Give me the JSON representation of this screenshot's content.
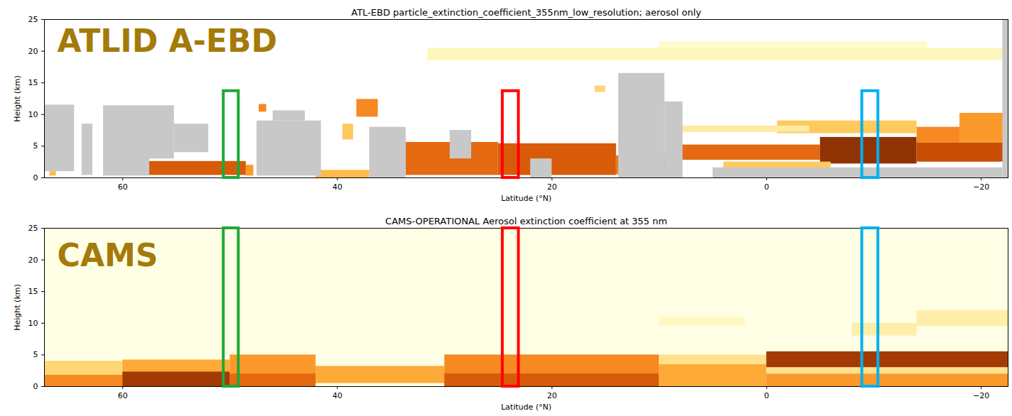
{
  "chart_data": [
    {
      "type": "heatmap",
      "title": "ATL-EBD particle_extinction_coefficient_355nm_low_resolution; aerosol only",
      "xlabel": "Latitude (°N)",
      "ylabel": "Height (km)",
      "xlim": [
        67.3,
        -22.5
      ],
      "ylim": [
        0,
        25
      ],
      "xticks": [
        60,
        40,
        20,
        0,
        {
          "value": -20,
          "label": "−20"
        }
      ],
      "yticks": [
        0,
        5,
        10,
        15,
        20,
        25
      ],
      "color": "YlOrBr",
      "zlim": [
        0,
        100
      ],
      "cells": [
        {
          "lat": [
            66.8,
            66.2
          ],
          "height": [
            0.3,
            1.0
          ],
          "value": 40
        },
        {
          "lat": [
            57.5,
            48.5
          ],
          "height": [
            0.4,
            2.6
          ],
          "value": 70
        },
        {
          "lat": [
            48.5,
            47.8
          ],
          "height": [
            0.3,
            2.0
          ],
          "value": 50
        },
        {
          "lat": [
            47.3,
            46.6
          ],
          "height": [
            10.4,
            11.6
          ],
          "value": 55
        },
        {
          "lat": [
            42,
            37
          ],
          "height": [
            0,
            1.2
          ],
          "value": 40
        },
        {
          "lat": [
            38.2,
            36.2
          ],
          "height": [
            9.6,
            12.4
          ],
          "value": 55
        },
        {
          "lat": [
            39.5,
            38.5
          ],
          "height": [
            6,
            8.5
          ],
          "value": 35
        },
        {
          "lat": [
            33.6,
            25
          ],
          "height": [
            0.4,
            5.6
          ],
          "value": 65
        },
        {
          "lat": [
            25,
            14
          ],
          "height": [
            0.4,
            5.4
          ],
          "value": 70
        },
        {
          "lat": [
            14,
            8
          ],
          "height": [
            0.5,
            3.5
          ],
          "value": 60
        },
        {
          "lat": [
            8,
            -5
          ],
          "height": [
            2.8,
            5.2
          ],
          "value": 65
        },
        {
          "lat": [
            -5,
            -14
          ],
          "height": [
            2.2,
            6.4
          ],
          "value": 90
        },
        {
          "lat": [
            -14,
            -22.5
          ],
          "height": [
            2.5,
            5.5
          ],
          "value": 75
        },
        {
          "lat": [
            -14,
            -18
          ],
          "height": [
            5.5,
            8
          ],
          "value": 55
        },
        {
          "lat": [
            -18,
            -22.5
          ],
          "height": [
            5.5,
            10.2
          ],
          "value": 50
        },
        {
          "lat": [
            -1,
            -14
          ],
          "height": [
            7,
            9
          ],
          "value": 35
        },
        {
          "lat": [
            9,
            -4
          ],
          "height": [
            7.2,
            8.2
          ],
          "value": 20
        },
        {
          "lat": [
            4,
            -6
          ],
          "height": [
            0.5,
            2.5
          ],
          "value": 35
        },
        {
          "lat": [
            31.6,
            -22
          ],
          "height": [
            18.5,
            20.5
          ],
          "value": 12
        },
        {
          "lat": [
            10,
            -15
          ],
          "height": [
            20.5,
            21.5
          ],
          "value": 8
        },
        {
          "lat": [
            16,
            15
          ],
          "height": [
            13.5,
            14.5
          ],
          "value": 30
        }
      ],
      "mask": {
        "color": "#c8c8c8",
        "cells": [
          {
            "lat": [
              67.3,
              64.5
            ],
            "height": [
              1,
              11.5
            ]
          },
          {
            "lat": [
              63.8,
              62.8
            ],
            "height": [
              0.4,
              8.5
            ]
          },
          {
            "lat": [
              61.8,
              57.5
            ],
            "height": [
              0.3,
              11.4
            ]
          },
          {
            "lat": [
              57.5,
              55.2
            ],
            "height": [
              3,
              11.4
            ]
          },
          {
            "lat": [
              55.2,
              52
            ],
            "height": [
              4,
              8.5
            ]
          },
          {
            "lat": [
              47.5,
              41.5
            ],
            "height": [
              0.3,
              9
            ]
          },
          {
            "lat": [
              46,
              43
            ],
            "height": [
              9,
              10.6
            ]
          },
          {
            "lat": [
              37,
              33.6
            ],
            "height": [
              0,
              8
            ]
          },
          {
            "lat": [
              29.5,
              27.5
            ],
            "height": [
              3,
              7.5
            ]
          },
          {
            "lat": [
              22,
              20
            ],
            "height": [
              0,
              3
            ]
          },
          {
            "lat": [
              13.8,
              9.5
            ],
            "height": [
              0,
              16.5
            ]
          },
          {
            "lat": [
              9.5,
              7.8
            ],
            "height": [
              0,
              12
            ]
          },
          {
            "lat": [
              5,
              -22
            ],
            "height": [
              0,
              1.6
            ]
          },
          {
            "lat": [
              -22,
              -22.5
            ],
            "height": [
              0,
              25
            ]
          }
        ]
      },
      "highlights": [
        {
          "lat": [
            50.6,
            49.2
          ],
          "height": [
            0,
            13.7
          ],
          "color": "#1fa83a"
        },
        {
          "lat": [
            24.6,
            23.1
          ],
          "height": [
            0,
            13.7
          ],
          "color": "#ff0000"
        },
        {
          "lat": [
            -8.9,
            -10.4
          ],
          "height": [
            0,
            13.7
          ],
          "color": "#00b0f0"
        }
      ],
      "annotations": [
        {
          "text": "ATLID A-EBD",
          "x": 66.1,
          "y": 21.5,
          "color": "#a47a0a"
        }
      ]
    },
    {
      "type": "heatmap",
      "title": "CAMS-OPERATIONAL Aerosol extinction coefficient at 355 nm",
      "xlabel": "Latitude (°N)",
      "ylabel": "Height (km)",
      "xlim": [
        67.3,
        -22.5
      ],
      "ylim": [
        0,
        25
      ],
      "xticks": [
        60,
        40,
        20,
        0,
        {
          "value": -20,
          "label": "−20"
        }
      ],
      "yticks": [
        0,
        5,
        10,
        15,
        20,
        25
      ],
      "color": "YlOrBr",
      "zlim": [
        0,
        100
      ],
      "cells": [
        {
          "lat": [
            67.3,
            60
          ],
          "height": [
            0,
            4
          ],
          "value": 30
        },
        {
          "lat": [
            67.3,
            60
          ],
          "height": [
            0,
            1.8
          ],
          "value": 55
        },
        {
          "lat": [
            60,
            50
          ],
          "height": [
            0,
            4.2
          ],
          "value": 45
        },
        {
          "lat": [
            60,
            50
          ],
          "height": [
            0,
            2.3
          ],
          "value": 85
        },
        {
          "lat": [
            50,
            42
          ],
          "height": [
            0,
            5
          ],
          "value": 50
        },
        {
          "lat": [
            50,
            42
          ],
          "height": [
            0,
            2
          ],
          "value": 65
        },
        {
          "lat": [
            42,
            30
          ],
          "height": [
            0.5,
            3.2
          ],
          "value": 45
        },
        {
          "lat": [
            30,
            10
          ],
          "height": [
            0,
            5
          ],
          "value": 55
        },
        {
          "lat": [
            30,
            10
          ],
          "height": [
            0,
            2
          ],
          "value": 70
        },
        {
          "lat": [
            10,
            0
          ],
          "height": [
            0,
            3.5
          ],
          "value": 45
        },
        {
          "lat": [
            10,
            0
          ],
          "height": [
            3.5,
            5
          ],
          "value": 25
        },
        {
          "lat": [
            0,
            -22.5
          ],
          "height": [
            0,
            2
          ],
          "value": 50
        },
        {
          "lat": [
            0,
            -22.5
          ],
          "height": [
            2,
            3
          ],
          "value": 25
        },
        {
          "lat": [
            0,
            -22.5
          ],
          "height": [
            3,
            5.5
          ],
          "value": 85
        },
        {
          "lat": [
            -8,
            -14
          ],
          "height": [
            8,
            10
          ],
          "value": 18
        },
        {
          "lat": [
            -14,
            -22.5
          ],
          "height": [
            9.5,
            12
          ],
          "value": 18
        },
        {
          "lat": [
            10,
            2
          ],
          "height": [
            9.5,
            11
          ],
          "value": 10
        }
      ],
      "highlights": [
        {
          "lat": [
            50.6,
            49.2
          ],
          "height": [
            0,
            25
          ],
          "color": "#1fa83a"
        },
        {
          "lat": [
            24.6,
            23.1
          ],
          "height": [
            0,
            25
          ],
          "color": "#ff0000"
        },
        {
          "lat": [
            -8.9,
            -10.4
          ],
          "height": [
            0,
            25
          ],
          "color": "#00b0f0"
        }
      ],
      "annotations": [
        {
          "text": "CAMS",
          "x": 66.1,
          "y": 20.6,
          "color": "#a47a0a"
        }
      ]
    }
  ]
}
